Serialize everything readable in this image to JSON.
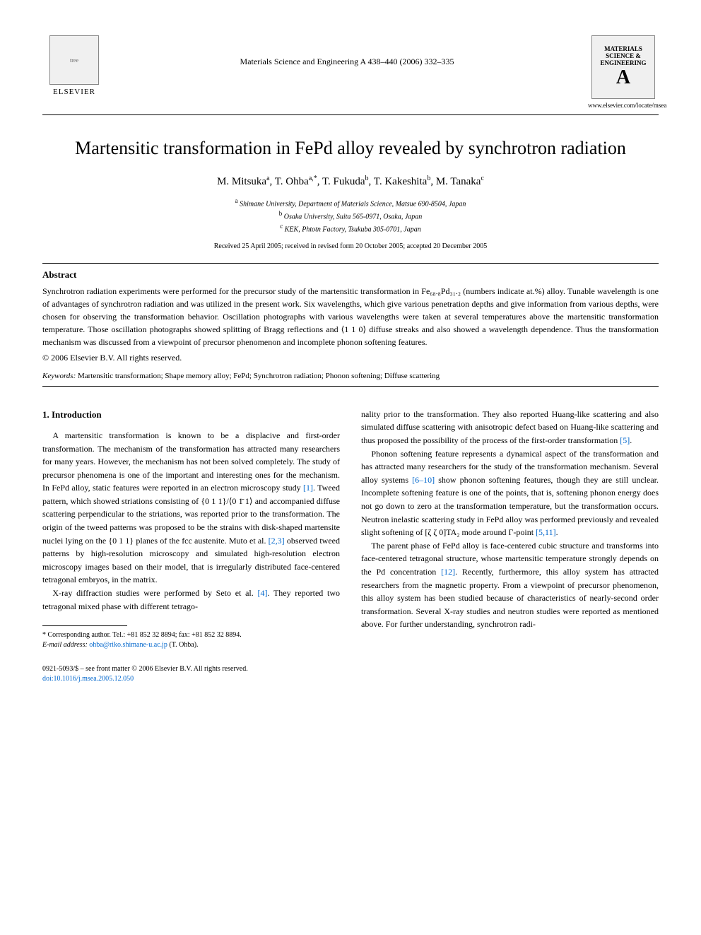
{
  "header": {
    "publisher_logo_text": "ELSEVIER",
    "journal_ref": "Materials Science and Engineering A 438–440 (2006) 332–335",
    "journal_cover_title": "MATERIALS SCIENCE & ENGINEERING",
    "journal_cover_letter": "A",
    "journal_url": "www.elsevier.com/locate/msea"
  },
  "title": "Martensitic transformation in FePd alloy revealed by synchrotron radiation",
  "authors_html": "M. Mitsuka<sup>a</sup>, T. Ohba<sup>a,*</sup>, T. Fukuda<sup>b</sup>, T. Kakeshita<sup>b</sup>, M. Tanaka<sup>c</sup>",
  "affiliations": [
    {
      "sup": "a",
      "text": "Shimane University, Department of Materials Science, Matsue 690-8504, Japan"
    },
    {
      "sup": "b",
      "text": "Osaka University, Suita 565-0971, Osaka, Japan"
    },
    {
      "sup": "c",
      "text": "KEK, Phtotn Factory, Tsukuba 305-0701, Japan"
    }
  ],
  "dates": "Received 25 April 2005; received in revised form 20 October 2005; accepted 20 December 2005",
  "abstract": {
    "heading": "Abstract",
    "text": "Synchrotron radiation experiments were performed for the precursor study of the martensitic transformation in Fe₆₈.₈Pd₃₁.₂ (numbers indicate at.%) alloy. Tunable wavelength is one of advantages of synchrotron radiation and was utilized in the present work. Six wavelengths, which give various penetration depths and give information from various depths, were chosen for observing the transformation behavior. Oscillation photographs with various wavelengths were taken at several temperatures above the martensitic transformation temperature. Those oscillation photographs showed splitting of Bragg reflections and ⟨1 1 0⟩ diffuse streaks and also showed a wavelength dependence. Thus the transformation mechanism was discussed from a viewpoint of precursor phenomenon and incomplete phonon softening features.",
    "copyright": "© 2006 Elsevier B.V. All rights reserved."
  },
  "keywords": {
    "label": "Keywords:",
    "text": "Martensitic transformation; Shape memory alloy; FePd; Synchrotron radiation; Phonon softening; Diffuse scattering"
  },
  "body": {
    "section_heading": "1. Introduction",
    "left_paragraphs": [
      "A martensitic transformation is known to be a displacive and first-order transformation. The mechanism of the transformation has attracted many researchers for many years. However, the mechanism has not been solved completely. The study of precursor phenomena is one of the important and interesting ones for the mechanism. In FePd alloy, static features were reported in an electron microscopy study [1]. Tweed pattern, which showed striations consisting of {0 1 1}/⟨0 1̄ 1⟩ and accompanied diffuse scattering perpendicular to the striations, was reported prior to the transformation. The origin of the tweed patterns was proposed to be the strains with disk-shaped martensite nuclei lying on the {0 1 1} planes of the fcc austenite. Muto et al. [2,3] observed tweed patterns by high-resolution microscopy and simulated high-resolution electron microscopy images based on their model, that is irregularly distributed face-centered tetragonal embryos, in the matrix.",
      "X-ray diffraction studies were performed by Seto et al. [4]. They reported two tetragonal mixed phase with different tetrago-"
    ],
    "right_paragraphs": [
      "nality prior to the transformation. They also reported Huang-like scattering and also simulated diffuse scattering with anisotropic defect based on Huang-like scattering and thus proposed the possibility of the process of the first-order transformation [5].",
      "Phonon softening feature represents a dynamical aspect of the transformation and has attracted many researchers for the study of the transformation mechanism. Several alloy systems [6–10] show phonon softening features, though they are still unclear. Incomplete softening feature is one of the points, that is, softening phonon energy does not go down to zero at the transformation temperature, but the transformation occurs. Neutron inelastic scattering study in FePd alloy was performed previously and revealed slight softening of [ζ ζ 0]TA₂ mode around Γ-point [5,11].",
      "The parent phase of FePd alloy is face-centered cubic structure and transforms into face-centered tetragonal structure, whose martensitic temperature strongly depends on the Pd concentration [12]. Recently, furthermore, this alloy system has attracted researchers from the magnetic property. From a viewpoint of precursor phenomenon, this alloy system has been studied because of characteristics of nearly-second order transformation. Several X-ray studies and neutron studies were reported as mentioned above. For further understanding, synchrotron radi-"
    ]
  },
  "footnote": {
    "corresponding": "* Corresponding author. Tel.: +81 852 32 8894; fax: +81 852 32 8894.",
    "email_label": "E-mail address:",
    "email": "ohba@riko.shimane-u.ac.jp",
    "email_person": "(T. Ohba)."
  },
  "footer": {
    "front_matter": "0921-5093/$ – see front matter © 2006 Elsevier B.V. All rights reserved.",
    "doi": "doi:10.1016/j.msea.2005.12.050"
  },
  "refs": {
    "r1": "[1]",
    "r23": "[2,3]",
    "r4": "[4]",
    "r5": "[5]",
    "r6_10": "[6–10]",
    "r5_11": "[5,11]",
    "r12": "[12]"
  },
  "colors": {
    "link": "#0066cc",
    "text": "#000000",
    "background": "#ffffff"
  },
  "typography": {
    "title_fontsize": 26,
    "body_fontsize": 12,
    "abstract_fontsize": 12,
    "affiliation_fontsize": 10,
    "footnote_fontsize": 10
  }
}
